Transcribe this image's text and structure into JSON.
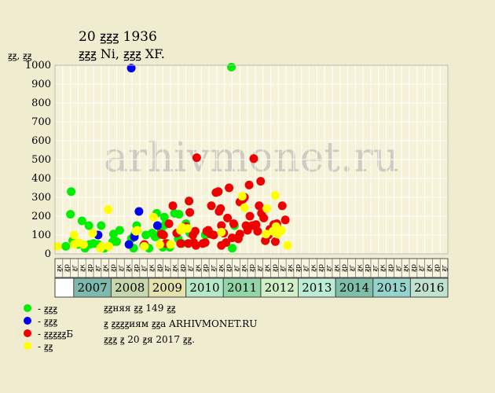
{
  "header": {
    "title": "20 ꙃꙃꙃ 1936",
    "subtitle": "ꙃꙃꙃ Ni, ꙃꙃꙃ XF.",
    "ylabel": "ꙃꙃ, ꙃꙃ"
  },
  "legend": [
    {
      "label": "- ꙃꙃꙃ",
      "color": "#00ee00"
    },
    {
      "label": "- ꙃꙃꙃ",
      "color": "#0000ee"
    },
    {
      "label": "- ꙃꙃꙃꙃꙃБ",
      "color": "#ee0000"
    },
    {
      "label": "- ꙃꙃ",
      "color": "#ffff00"
    }
  ],
  "notes": {
    "line1": "ꙃꙃняя ꙃꙃ 149 ꙃꙃ",
    "line2": "ꙃ ꙃꙃꙃꙃиям ꙃꙃа ARHIVMONET.RU",
    "line3": "ꙃꙃꙃ ꙃ 20 ꙃя 2017 ꙃꙃ."
  },
  "watermark": "arhivmonet.ru",
  "chart_data": {
    "type": "scatter",
    "ylim": [
      0,
      1000
    ],
    "yticks": [
      0,
      100,
      200,
      300,
      400,
      500,
      600,
      700,
      800,
      900,
      1000
    ],
    "quarter_labels": [
      "ꙃк",
      "ꙃр",
      "ꙃг",
      "ꙃк",
      "ꙃр",
      "ꙃг",
      "ꙃк",
      "ꙃр",
      "ꙃг",
      "ꙃк",
      "ꙃр",
      "ꙃг",
      "ꙃк",
      "ꙃр",
      "ꙃг",
      "ꙃк",
      "ꙃр",
      "ꙃг",
      "ꙃк",
      "ꙃр",
      "ꙃг",
      "ꙃк",
      "ꙃр",
      "ꙃг",
      "ꙃк",
      "ꙃр",
      "ꙃг",
      "ꙃк",
      "ꙃр",
      "ꙃг",
      "ꙃк",
      "ꙃр",
      "ꙃг",
      "ꙃк",
      "ꙃр",
      "ꙃг",
      "ꙃк",
      "ꙃр",
      "ꙃг",
      "ꙃк",
      "ꙃр",
      "ꙃг",
      "ꙃк",
      "ꙃр",
      "ꙃг",
      "ꙃк",
      "ꙃр",
      "ꙃг",
      "ꙃк",
      "ꙃр",
      "ꙃг"
    ],
    "years": [
      {
        "label": "2007",
        "color": "#7fb8ac"
      },
      {
        "label": "2008",
        "color": "#c7d8ae"
      },
      {
        "label": "2009",
        "color": "#e4e2ad"
      },
      {
        "label": "2010",
        "color": "#b6e9c8"
      },
      {
        "label": "2011",
        "color": "#92d6a8"
      },
      {
        "label": "2012",
        "color": "#d2f0c8"
      },
      {
        "label": "2013",
        "color": "#bcecd6"
      },
      {
        "label": "2014",
        "color": "#7fbfaa"
      },
      {
        "label": "2015",
        "color": "#94d4cc"
      },
      {
        "label": "2016",
        "color": "#c2e2d0"
      }
    ],
    "series": [
      {
        "color": "#00ee00",
        "points": [
          [
            1.4,
            40
          ],
          [
            2.1,
            330
          ],
          [
            2.0,
            210
          ],
          [
            2.3,
            70
          ],
          [
            3.0,
            50
          ],
          [
            3.5,
            175
          ],
          [
            3.9,
            30
          ],
          [
            4.5,
            50
          ],
          [
            4.4,
            150
          ],
          [
            5.0,
            55
          ],
          [
            5.6,
            50
          ],
          [
            6.0,
            150
          ],
          [
            6.4,
            30
          ],
          [
            7.6,
            105
          ],
          [
            7.5,
            65
          ],
          [
            8.0,
            65
          ],
          [
            8.4,
            125
          ],
          [
            9.9,
            80
          ],
          [
            10.3,
            100
          ],
          [
            10.5,
            120
          ],
          [
            10.6,
            150
          ],
          [
            10.2,
            30
          ],
          [
            11.5,
            45
          ],
          [
            11.8,
            100
          ],
          [
            12.2,
            30
          ],
          [
            12.6,
            110
          ],
          [
            13.0,
            90
          ],
          [
            13.2,
            215
          ],
          [
            13.5,
            100
          ],
          [
            13.8,
            120
          ],
          [
            14.0,
            35
          ],
          [
            14.2,
            195
          ],
          [
            14.3,
            155
          ],
          [
            14.6,
            55
          ],
          [
            14.9,
            35
          ],
          [
            15.5,
            215
          ],
          [
            16.0,
            80
          ],
          [
            16.1,
            210
          ],
          [
            16.5,
            55
          ],
          [
            17.0,
            160
          ],
          [
            17.5,
            110
          ],
          [
            19.5,
            100
          ],
          [
            22.9,
            990
          ],
          [
            23.0,
            30
          ],
          [
            23.3,
            150
          ]
        ]
      },
      {
        "color": "#0000ee",
        "points": [
          [
            5.6,
            100
          ],
          [
            9.9,
            985
          ],
          [
            9.6,
            50
          ],
          [
            10.3,
            90
          ],
          [
            10.9,
            225
          ],
          [
            13.3,
            150
          ]
        ]
      },
      {
        "color": "#ee0000",
        "points": [
          [
            11.6,
            50
          ],
          [
            13.8,
            105
          ],
          [
            14.1,
            100
          ],
          [
            14.4,
            55
          ],
          [
            14.8,
            160
          ],
          [
            15.3,
            255
          ],
          [
            15.8,
            110
          ],
          [
            16.3,
            55
          ],
          [
            17.0,
            145
          ],
          [
            17.3,
            55
          ],
          [
            17.4,
            280
          ],
          [
            17.5,
            220
          ],
          [
            17.9,
            100
          ],
          [
            18.0,
            60
          ],
          [
            18.2,
            120
          ],
          [
            18.3,
            45
          ],
          [
            18.4,
            510
          ],
          [
            19.2,
            55
          ],
          [
            19.5,
            60
          ],
          [
            19.7,
            120
          ],
          [
            19.9,
            125
          ],
          [
            20.2,
            105
          ],
          [
            20.3,
            255
          ],
          [
            20.6,
            100
          ],
          [
            20.9,
            325
          ],
          [
            21.2,
            330
          ],
          [
            21.3,
            225
          ],
          [
            21.5,
            240
          ],
          [
            21.6,
            150
          ],
          [
            21.6,
            45
          ],
          [
            21.9,
            110
          ],
          [
            22.2,
            60
          ],
          [
            22.4,
            190
          ],
          [
            22.6,
            350
          ],
          [
            23.0,
            85
          ],
          [
            23.2,
            160
          ],
          [
            23.7,
            85
          ],
          [
            23.8,
            80
          ],
          [
            24.0,
            275
          ],
          [
            24.0,
            105
          ],
          [
            24.4,
            290
          ],
          [
            24.6,
            300
          ],
          [
            24.8,
            150
          ],
          [
            25.0,
            125
          ],
          [
            25.2,
            365
          ],
          [
            25.3,
            200
          ],
          [
            25.6,
            150
          ],
          [
            25.8,
            505
          ],
          [
            26.1,
            155
          ],
          [
            26.3,
            120
          ],
          [
            26.5,
            255
          ],
          [
            26.7,
            385
          ],
          [
            26.8,
            215
          ],
          [
            27.1,
            190
          ],
          [
            27.3,
            70
          ],
          [
            27.7,
            100
          ],
          [
            27.9,
            130
          ],
          [
            28.4,
            155
          ],
          [
            28.6,
            65
          ],
          [
            28.8,
            160
          ],
          [
            29.0,
            130
          ],
          [
            29.5,
            255
          ],
          [
            29.9,
            180
          ]
        ]
      },
      {
        "color": "#ffff00",
        "points": [
          [
            0.3,
            40
          ],
          [
            2.5,
            100
          ],
          [
            2.5,
            50
          ],
          [
            3.0,
            60
          ],
          [
            3.7,
            50
          ],
          [
            4.9,
            110
          ],
          [
            5.9,
            30
          ],
          [
            6.1,
            40
          ],
          [
            6.9,
            235
          ],
          [
            7.0,
            40
          ],
          [
            10.5,
            120
          ],
          [
            10.7,
            125
          ],
          [
            11.6,
            40
          ],
          [
            12.8,
            195
          ],
          [
            13.6,
            50
          ],
          [
            15.0,
            50
          ],
          [
            16.3,
            125
          ],
          [
            16.5,
            140
          ],
          [
            17.2,
            135
          ],
          [
            21.6,
            115
          ],
          [
            24.3,
            305
          ],
          [
            24.6,
            245
          ],
          [
            27.4,
            105
          ],
          [
            27.5,
            240
          ],
          [
            28.3,
            120
          ],
          [
            28.6,
            310
          ],
          [
            28.7,
            145
          ],
          [
            28.9,
            105
          ],
          [
            29.4,
            125
          ],
          [
            30.2,
            45
          ]
        ]
      }
    ]
  }
}
